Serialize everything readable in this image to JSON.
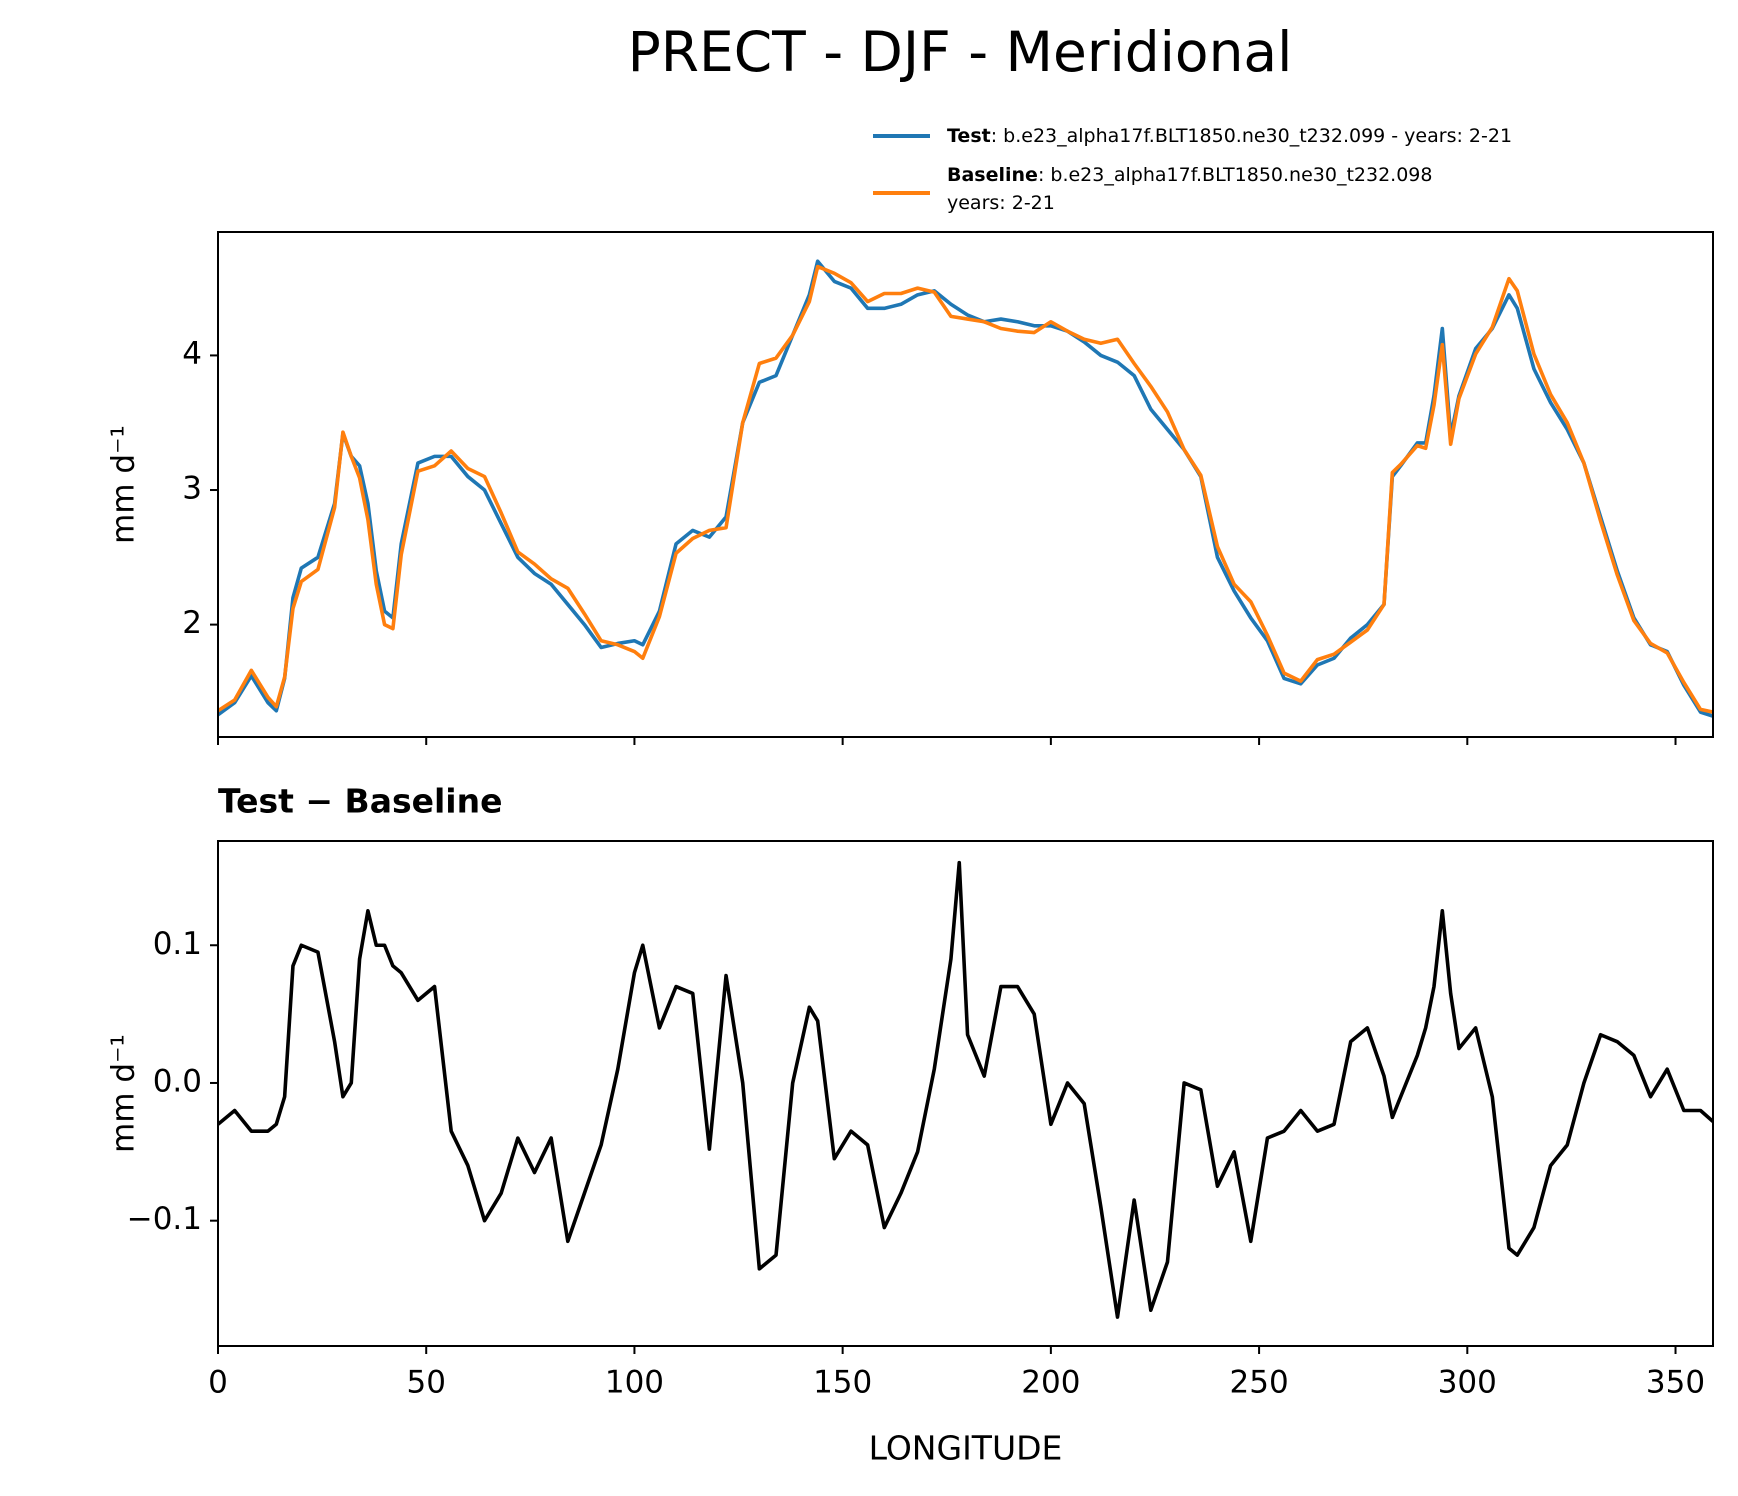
{
  "chart_data": [
    {
      "type": "line",
      "title": "PRECT - DJF - Meridional",
      "ylabel": "mm d⁻¹",
      "x": [
        0,
        4,
        8,
        12,
        14,
        16,
        18,
        20,
        24,
        28,
        30,
        32,
        34,
        36,
        38,
        40,
        42,
        44,
        48,
        52,
        56,
        60,
        64,
        68,
        72,
        76,
        80,
        84,
        88,
        92,
        96,
        100,
        102,
        106,
        110,
        114,
        118,
        122,
        126,
        130,
        134,
        138,
        142,
        144,
        148,
        152,
        156,
        160,
        164,
        168,
        172,
        176,
        180,
        184,
        188,
        192,
        196,
        200,
        204,
        208,
        212,
        216,
        220,
        224,
        228,
        232,
        236,
        240,
        244,
        248,
        252,
        256,
        260,
        264,
        268,
        272,
        276,
        280,
        282,
        284,
        288,
        290,
        292,
        294,
        296,
        298,
        302,
        306,
        310,
        312,
        316,
        320,
        324,
        328,
        332,
        336,
        340,
        344,
        348,
        352,
        356,
        359
      ],
      "series": [
        {
          "name": "Test",
          "description": [
            ": b.e23_alpha17f.BLT1850.ne30_t232.099 - years: 2-21"
          ],
          "color": "#1f77b4",
          "values": [
            1.33,
            1.42,
            1.62,
            1.42,
            1.36,
            1.6,
            2.2,
            2.42,
            2.5,
            2.9,
            3.42,
            3.25,
            3.18,
            2.9,
            2.4,
            2.1,
            2.05,
            2.6,
            3.2,
            3.25,
            3.25,
            3.1,
            3.0,
            2.75,
            2.5,
            2.38,
            2.3,
            2.15,
            2.0,
            1.83,
            1.86,
            1.88,
            1.85,
            2.1,
            2.6,
            2.7,
            2.65,
            2.8,
            3.5,
            3.8,
            3.85,
            4.15,
            4.45,
            4.7,
            4.55,
            4.5,
            4.35,
            4.35,
            4.38,
            4.45,
            4.48,
            4.38,
            4.3,
            4.25,
            4.27,
            4.25,
            4.22,
            4.22,
            4.18,
            4.1,
            4.0,
            3.95,
            3.85,
            3.6,
            3.45,
            3.3,
            3.1,
            2.5,
            2.25,
            2.05,
            1.88,
            1.6,
            1.56,
            1.7,
            1.75,
            1.9,
            2.0,
            2.15,
            3.1,
            3.18,
            3.35,
            3.35,
            3.7,
            4.2,
            3.4,
            3.7,
            4.05,
            4.2,
            4.45,
            4.35,
            3.9,
            3.65,
            3.45,
            3.2,
            2.8,
            2.4,
            2.05,
            1.85,
            1.8,
            1.55,
            1.35,
            1.32
          ]
        },
        {
          "name": "Baseline",
          "description": [
            ": b.e23_alpha17f.BLT1850.ne30_t232.098",
            "years: 2-21"
          ],
          "color": "#ff7f0e",
          "values": [
            1.36,
            1.44,
            1.66,
            1.46,
            1.39,
            1.61,
            2.12,
            2.32,
            2.41,
            2.87,
            3.43,
            3.25,
            3.09,
            2.78,
            2.3,
            2.0,
            1.97,
            2.52,
            3.14,
            3.18,
            3.29,
            3.16,
            3.1,
            2.83,
            2.54,
            2.45,
            2.34,
            2.27,
            2.08,
            1.88,
            1.85,
            1.8,
            1.75,
            2.06,
            2.53,
            2.64,
            2.7,
            2.72,
            3.5,
            3.94,
            3.98,
            4.15,
            4.4,
            4.66,
            4.61,
            4.54,
            4.4,
            4.46,
            4.46,
            4.5,
            4.47,
            4.29,
            4.27,
            4.25,
            4.2,
            4.18,
            4.17,
            4.25,
            4.18,
            4.12,
            4.09,
            4.12,
            3.94,
            3.77,
            3.58,
            3.3,
            3.11,
            2.58,
            2.3,
            2.17,
            1.92,
            1.64,
            1.58,
            1.74,
            1.78,
            1.87,
            1.96,
            2.15,
            3.13,
            3.19,
            3.33,
            3.31,
            3.63,
            4.08,
            3.34,
            3.68,
            4.01,
            4.21,
            4.57,
            4.48,
            4.01,
            3.71,
            3.5,
            3.2,
            2.77,
            2.37,
            2.03,
            1.86,
            1.79,
            1.57,
            1.37,
            1.35
          ]
        }
      ],
      "xlim": [
        0,
        359
      ],
      "xticks": [
        0,
        50,
        100,
        150,
        200,
        250,
        300,
        350
      ],
      "ylim": [
        1.165,
        4.917
      ],
      "yticks": [
        2,
        3,
        4
      ]
    },
    {
      "type": "line",
      "title": "Test − Baseline",
      "ylabel": "mm d⁻¹",
      "xlabel": "LONGITUDE",
      "x": [
        0,
        4,
        8,
        12,
        14,
        16,
        18,
        20,
        24,
        28,
        30,
        32,
        34,
        36,
        38,
        40,
        42,
        44,
        48,
        52,
        56,
        60,
        64,
        68,
        72,
        76,
        80,
        84,
        88,
        92,
        96,
        100,
        102,
        106,
        110,
        114,
        118,
        122,
        126,
        130,
        134,
        138,
        142,
        144,
        148,
        152,
        156,
        160,
        164,
        168,
        172,
        176,
        178,
        180,
        184,
        188,
        192,
        196,
        200,
        204,
        208,
        212,
        216,
        220,
        224,
        228,
        232,
        236,
        240,
        244,
        248,
        252,
        256,
        260,
        264,
        268,
        272,
        276,
        280,
        282,
        284,
        288,
        290,
        292,
        294,
        296,
        298,
        302,
        306,
        310,
        312,
        316,
        320,
        324,
        328,
        332,
        336,
        340,
        344,
        348,
        352,
        356,
        359
      ],
      "series": [
        {
          "color": "#000000",
          "values": [
            -0.03,
            -0.02,
            -0.035,
            -0.035,
            -0.03,
            -0.01,
            0.085,
            0.1,
            0.095,
            0.03,
            -0.01,
            0.0,
            0.09,
            0.125,
            0.1,
            0.1,
            0.085,
            0.08,
            0.06,
            0.07,
            -0.035,
            -0.06,
            -0.1,
            -0.08,
            -0.04,
            -0.065,
            -0.04,
            -0.115,
            -0.08,
            -0.045,
            0.01,
            0.08,
            0.1,
            0.04,
            0.07,
            0.065,
            -0.048,
            0.078,
            0.0,
            -0.135,
            -0.125,
            0.0,
            0.055,
            0.045,
            -0.055,
            -0.035,
            -0.045,
            -0.105,
            -0.08,
            -0.05,
            0.01,
            0.09,
            0.16,
            0.035,
            0.005,
            0.07,
            0.07,
            0.05,
            -0.03,
            0.0,
            -0.015,
            -0.09,
            -0.17,
            -0.085,
            -0.165,
            -0.13,
            0.0,
            -0.005,
            -0.075,
            -0.05,
            -0.115,
            -0.04,
            -0.035,
            -0.02,
            -0.035,
            -0.03,
            0.03,
            0.04,
            0.005,
            -0.025,
            -0.01,
            0.02,
            0.04,
            0.07,
            0.125,
            0.065,
            0.025,
            0.04,
            -0.01,
            -0.12,
            -0.125,
            -0.105,
            -0.06,
            -0.045,
            0.0,
            0.035,
            0.03,
            0.02,
            -0.01,
            0.01,
            -0.02,
            -0.02,
            -0.028
          ]
        }
      ],
      "xlim": [
        0,
        359
      ],
      "xticks": [
        0,
        50,
        100,
        150,
        200,
        250,
        300,
        350
      ],
      "ylim": [
        -0.191,
        0.1757
      ],
      "yticks": [
        {
          "value": -0.1,
          "label": "−0.1"
        },
        {
          "value": 0,
          "label": "0.0"
        },
        0.1
      ]
    }
  ]
}
